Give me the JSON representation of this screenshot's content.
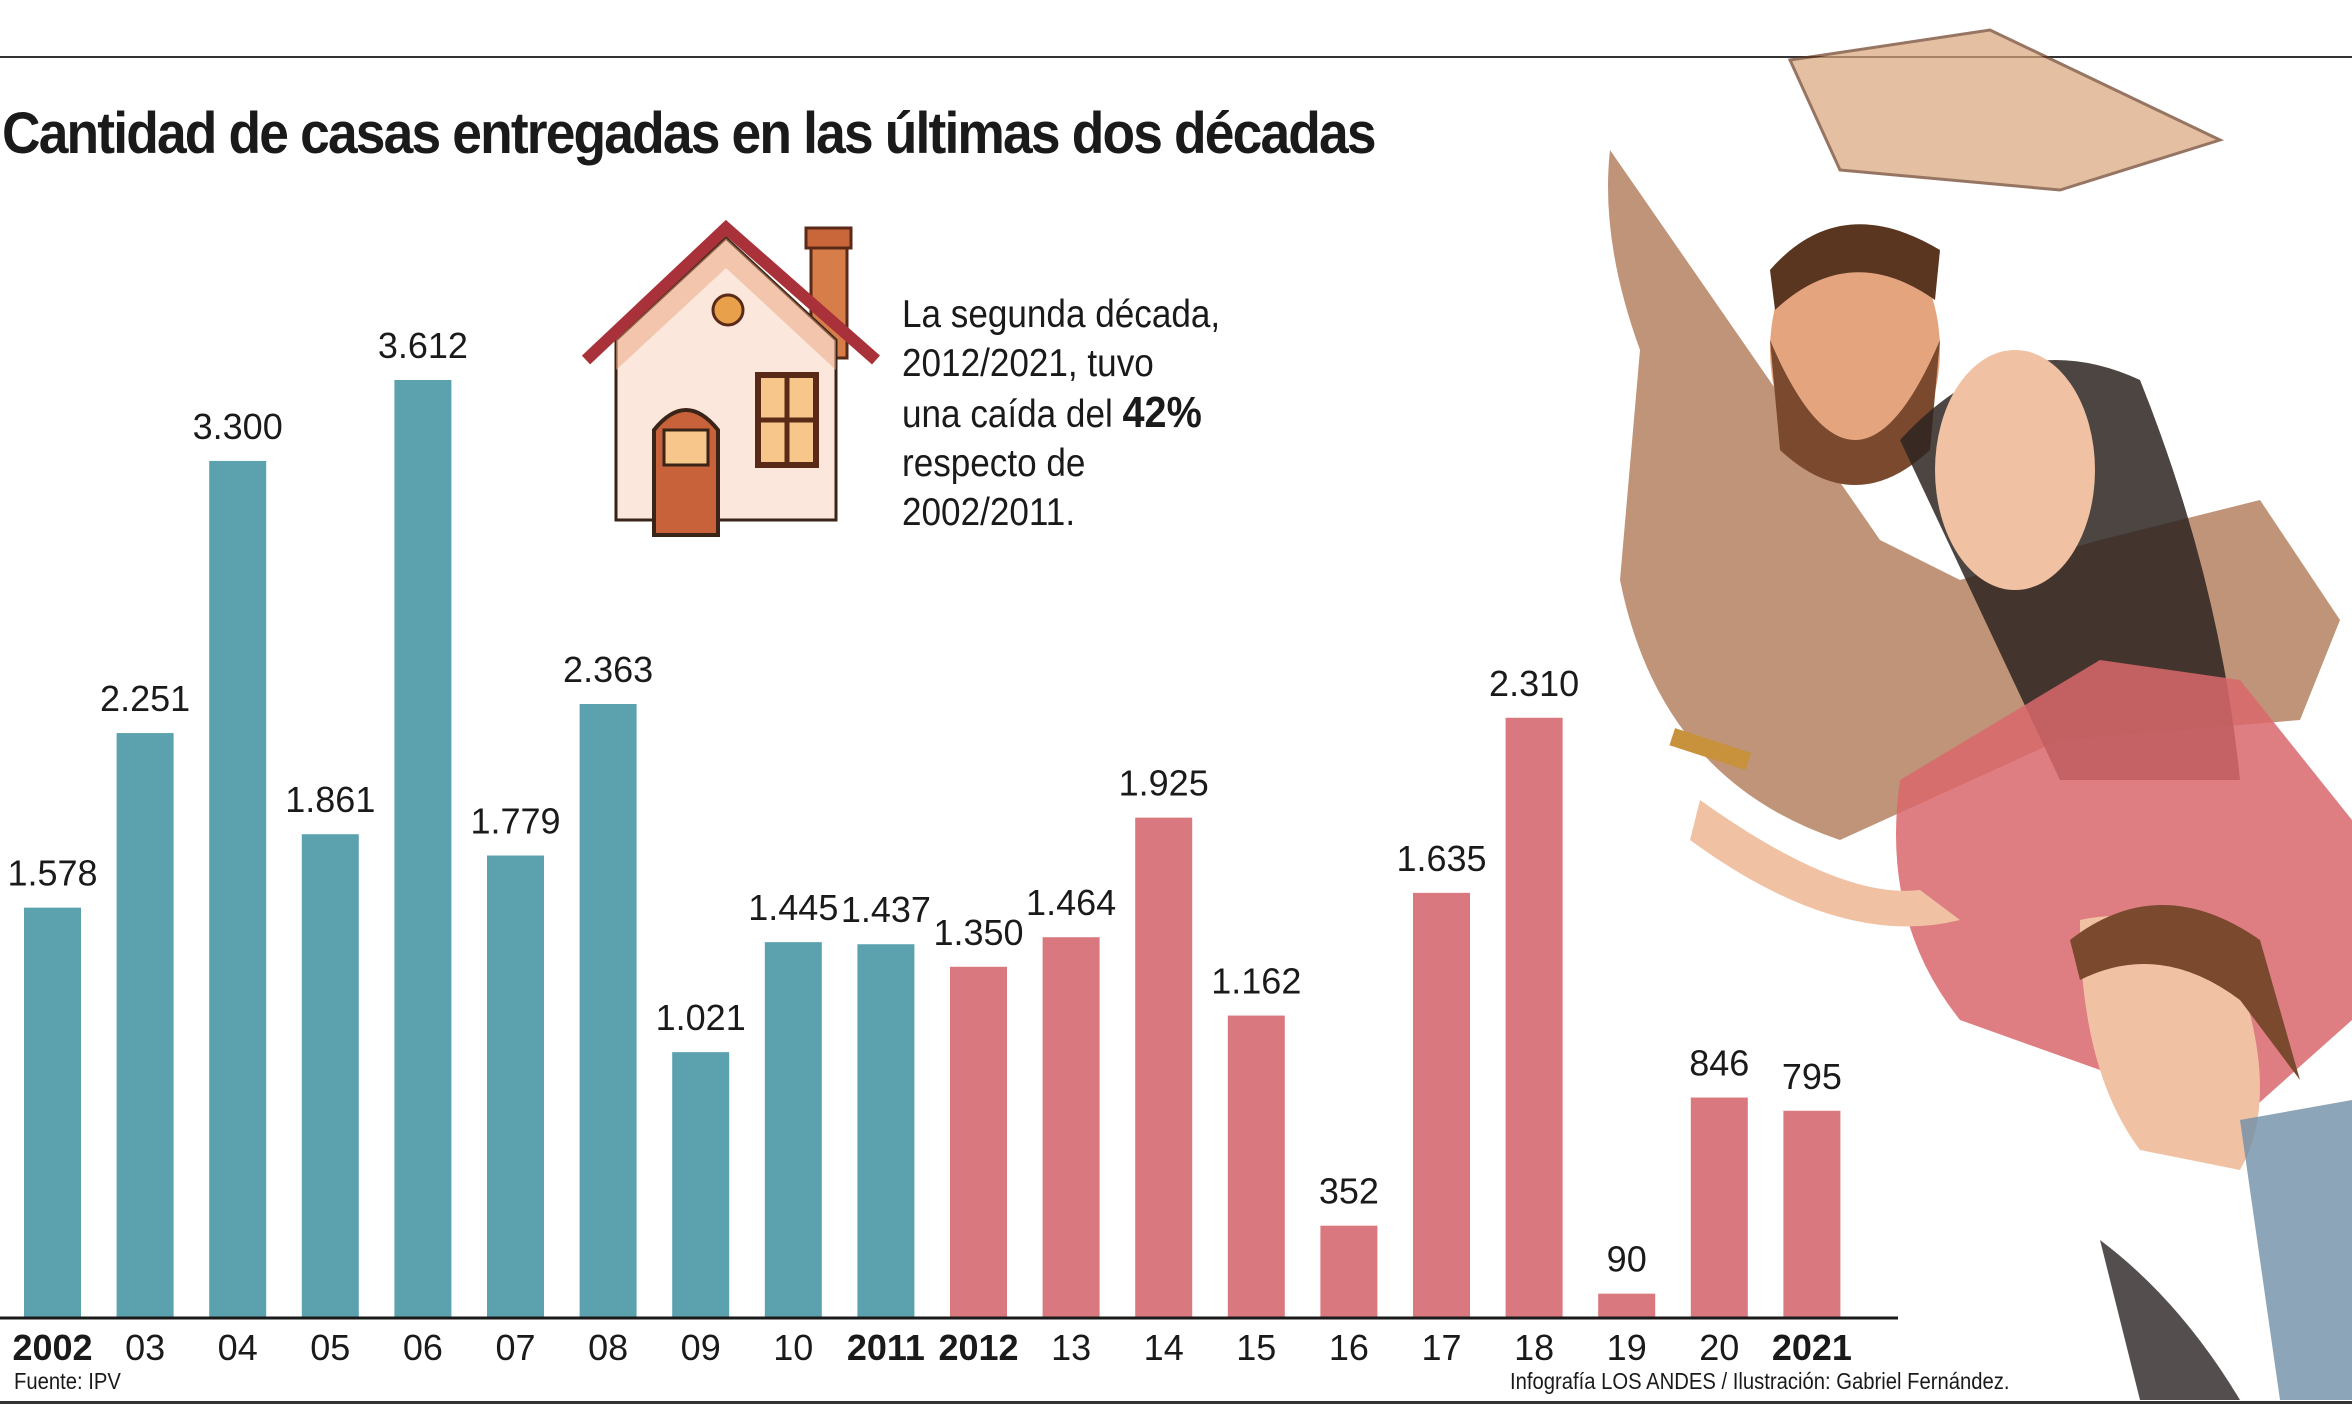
{
  "title": "Cantidad de casas entregadas en las últimas dos décadas",
  "note": {
    "line1": "La segunda década,",
    "line2": "2012/2021, tuvo",
    "line3_prefix": "una caída del ",
    "line3_highlight": "42%",
    "line4": "respecto de",
    "line5": "2002/2011."
  },
  "footer": {
    "source": "Fuente: IPV",
    "credits": "Infografía LOS ANDES / Ilustración: Gabriel Fernández."
  },
  "colors": {
    "first_decade": "#5ba2ae",
    "second_decade": "#d9797f"
  },
  "chart_data": {
    "type": "bar",
    "title": "Cantidad de casas entregadas en las últimas dos décadas",
    "categories": [
      "2002",
      "03",
      "04",
      "05",
      "06",
      "07",
      "08",
      "09",
      "10",
      "2011",
      "2012",
      "13",
      "14",
      "15",
      "16",
      "17",
      "18",
      "19",
      "20",
      "2021"
    ],
    "bold_categories": [
      "2002",
      "2011",
      "2012",
      "2021"
    ],
    "values": [
      1578,
      2251,
      3300,
      1861,
      3612,
      1779,
      2363,
      1021,
      1445,
      1437,
      1350,
      1464,
      1925,
      1162,
      352,
      1635,
      2310,
      90,
      846,
      795
    ],
    "value_labels": [
      "1.578",
      "2.251",
      "3.300",
      "1.861",
      "3.612",
      "1.779",
      "2.363",
      "1.021",
      "1.445",
      "1.437",
      "1.350",
      "1.464",
      "1.925",
      "1.162",
      "352",
      "1.635",
      "2.310",
      "90",
      "846",
      "795"
    ],
    "groups": [
      {
        "range": "2002/2011",
        "color": "#5ba2ae"
      },
      {
        "range": "2012/2021",
        "color": "#d9797f"
      }
    ],
    "ylim": [
      0,
      3700
    ],
    "grid": false,
    "xlabel": "",
    "ylabel": ""
  }
}
